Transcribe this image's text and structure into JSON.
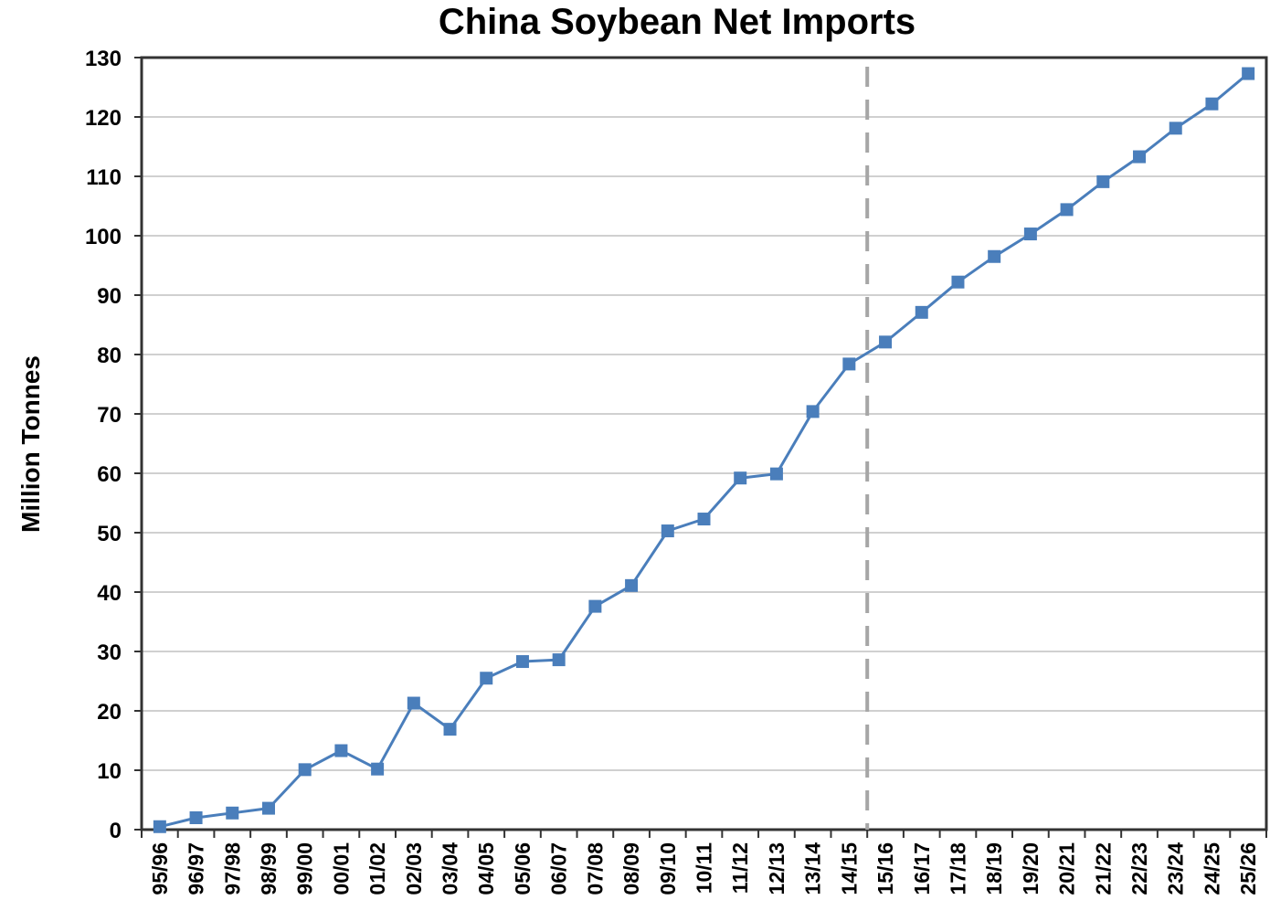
{
  "chart_data": {
    "type": "line",
    "title": "China Soybean Net Imports",
    "ylabel": "Million Tonnes",
    "xlabel": "",
    "ylim": [
      0,
      130
    ],
    "yticks": [
      0,
      10,
      20,
      30,
      40,
      50,
      60,
      70,
      80,
      90,
      100,
      110,
      120,
      130
    ],
    "grid": "horizontal",
    "categories": [
      "95/96",
      "96/97",
      "97/98",
      "98/99",
      "99/00",
      "00/01",
      "01/02",
      "02/03",
      "03/04",
      "04/05",
      "05/06",
      "06/07",
      "07/08",
      "08/09",
      "09/10",
      "10/11",
      "11/12",
      "12/13",
      "13/14",
      "14/15",
      "15/16",
      "16/17",
      "17/18",
      "18/19",
      "19/20",
      "20/21",
      "21/22",
      "22/23",
      "23/24",
      "24/25",
      "25/26"
    ],
    "series": [
      {
        "color": "#4a7ebb",
        "marker": "square",
        "values": [
          0.5,
          2,
          2.8,
          3.6,
          10.1,
          13.3,
          10.2,
          21.3,
          16.9,
          25.5,
          28.3,
          28.6,
          37.6,
          41.1,
          50.3,
          52.3,
          59.2,
          59.9,
          70.4,
          78.4,
          82.1,
          87.1,
          92.2,
          96.5,
          100.3,
          104.4,
          109.1,
          113.3,
          118.1,
          122.2,
          127.3
        ]
      }
    ],
    "annotations": [
      {
        "type": "vertical-dashed-line",
        "between": [
          "14/15",
          "15/16"
        ],
        "color": "#a6a6a6"
      }
    ]
  }
}
